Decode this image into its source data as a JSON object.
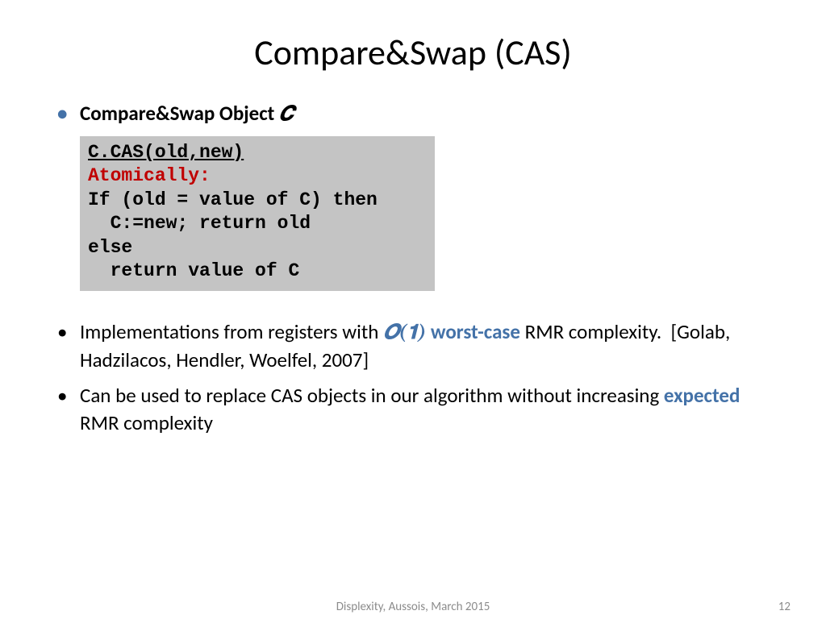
{
  "colors": {
    "accent": "#4472a8",
    "code_bg": "#c4c4c4",
    "code_red": "#c00000",
    "footer_text": "#8c8c8c",
    "background": "#ffffff",
    "text": "#000000"
  },
  "title": "Compare&Swap (CAS)",
  "bullet1": {
    "prefix": "Compare&Swap Object ",
    "mathvar": "𝑪"
  },
  "code": {
    "l1": "C.CAS(old,new)",
    "l2": "Atomically:",
    "l3": "If (old = value of C) then",
    "l4": "  C:=new; return old",
    "l5": "else",
    "l6": "  return value of C"
  },
  "bullet2": {
    "t1": "Implementations from registers with ",
    "bigO": "𝑶(𝟏)",
    "t2": " worst-case",
    "t3": " RMR complexity.  [Golab, Hadzilacos, Hendler, Woelfel, 2007]"
  },
  "bullet3": {
    "t1": "Can be used to replace CAS objects in our algorithm without increasing ",
    "hl": "expected",
    "t2": " RMR complexity"
  },
  "footer": {
    "venue": "Displexity, Aussois, March 2015",
    "page": "12"
  }
}
